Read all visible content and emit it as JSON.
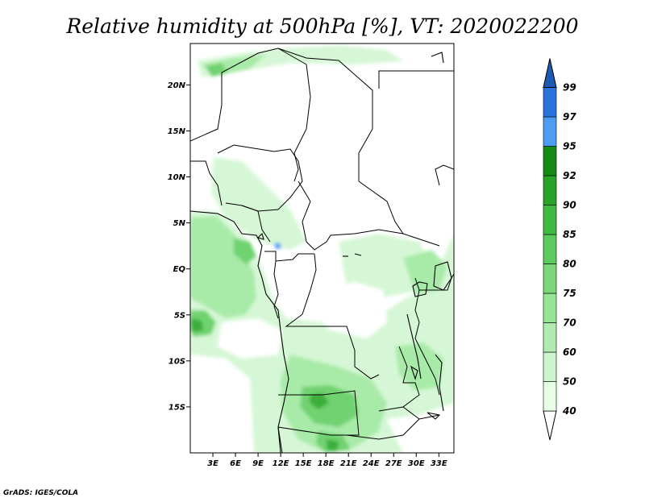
{
  "title": "Relative humidity at 500hPa [%], VT: 2020022200",
  "credit": "GrADS: IGES/COLA",
  "map": {
    "lon_range": [
      0,
      35
    ],
    "lat_range": [
      -20,
      24.5
    ],
    "x_ticks": [
      "3E",
      "6E",
      "9E",
      "12E",
      "15E",
      "18E",
      "21E",
      "24E",
      "27E",
      "30E",
      "33E"
    ],
    "x_tick_values": [
      3,
      6,
      9,
      12,
      15,
      18,
      21,
      24,
      27,
      30,
      33
    ],
    "y_ticks": [
      "20N",
      "15N",
      "10N",
      "5N",
      "EQ",
      "5S",
      "10S",
      "15S"
    ],
    "y_tick_values": [
      20,
      15,
      10,
      5,
      0,
      -5,
      -10,
      -15
    ]
  },
  "colorbar": {
    "levels": [
      "40",
      "50",
      "60",
      "70",
      "75",
      "80",
      "85",
      "90",
      "92",
      "95",
      "97",
      "99"
    ],
    "colors": [
      "#ffffff",
      "#e6ffe6",
      "#cdf5cd",
      "#b0ecb0",
      "#96e496",
      "#7ad87a",
      "#5cca5c",
      "#40b940",
      "#28a428",
      "#148c14",
      "#4c9ef2",
      "#2a74dc",
      "#1e5ab4"
    ]
  }
}
